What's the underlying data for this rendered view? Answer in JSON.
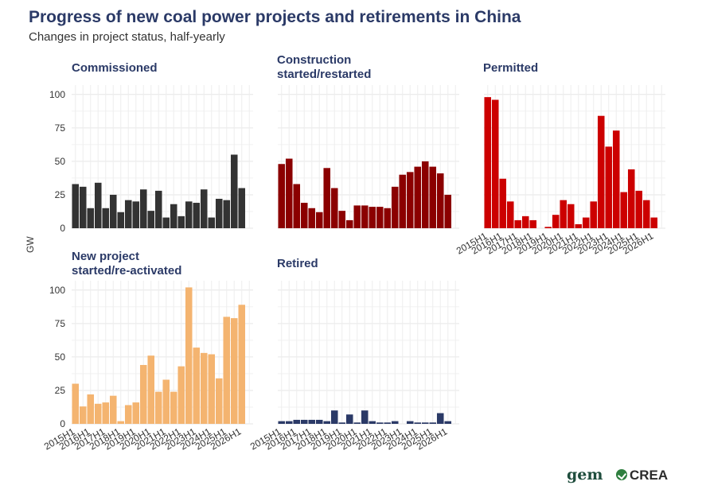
{
  "title": "Progress of new coal power projects and retirements in China",
  "subtitle": "Changes in project status, half-yearly",
  "ylabel": "GW",
  "logos": {
    "gem": "gem",
    "crea": "CREA"
  },
  "chart_data": [
    {
      "type": "bar",
      "facet": "Commissioned",
      "title_lines": [
        "Commissioned"
      ],
      "color": "#333333",
      "categories": [
        "2015H1",
        "2015H2",
        "2016H1",
        "2016H2",
        "2017H1",
        "2017H2",
        "2018H1",
        "2018H2",
        "2019H1",
        "2019H2",
        "2020H1",
        "2020H2",
        "2021H1",
        "2021H2",
        "2022H1",
        "2022H2",
        "2023H1",
        "2023H2",
        "2024H1",
        "2024H2",
        "2025H1",
        "2025H2",
        "2026H1",
        "2026H2"
      ],
      "values": [
        33,
        31,
        15,
        34,
        15,
        25,
        12,
        21,
        20,
        29,
        13,
        28,
        8,
        18,
        9,
        20,
        19,
        29,
        8,
        22,
        21,
        55,
        30,
        null
      ],
      "ylim": [
        0,
        107
      ],
      "yticks": [
        0,
        25,
        50,
        75,
        100
      ],
      "show_y": true,
      "show_x": false
    },
    {
      "type": "bar",
      "facet": "Construction started/restarted",
      "title_lines": [
        "Construction",
        "started/restarted"
      ],
      "color": "#8b0000",
      "categories": [
        "2015H1",
        "2015H2",
        "2016H1",
        "2016H2",
        "2017H1",
        "2017H2",
        "2018H1",
        "2018H2",
        "2019H1",
        "2019H2",
        "2020H1",
        "2020H2",
        "2021H1",
        "2021H2",
        "2022H1",
        "2022H2",
        "2023H1",
        "2023H2",
        "2024H1",
        "2024H2",
        "2025H1",
        "2025H2",
        "2026H1",
        "2026H2"
      ],
      "values": [
        48,
        52,
        33,
        19,
        15,
        12,
        45,
        30,
        13,
        6,
        17,
        17,
        16,
        16,
        15,
        31,
        40,
        42,
        46,
        50,
        46,
        41,
        25,
        null
      ],
      "ylim": [
        0,
        107
      ],
      "yticks": [
        0,
        25,
        50,
        75,
        100
      ],
      "show_y": false,
      "show_x": false
    },
    {
      "type": "bar",
      "facet": "Permitted",
      "title_lines": [
        "Permitted"
      ],
      "color": "#cc0000",
      "categories": [
        "2015H1",
        "2015H2",
        "2016H1",
        "2016H2",
        "2017H1",
        "2017H2",
        "2018H1",
        "2018H2",
        "2019H1",
        "2019H2",
        "2020H1",
        "2020H2",
        "2021H1",
        "2021H2",
        "2022H1",
        "2022H2",
        "2023H1",
        "2023H2",
        "2024H1",
        "2024H2",
        "2025H1",
        "2025H2",
        "2026H1",
        "2026H2"
      ],
      "values": [
        98,
        96,
        37,
        20,
        6,
        9,
        6,
        null,
        1,
        10,
        21,
        18,
        3,
        8,
        20,
        84,
        61,
        73,
        27,
        44,
        28,
        21,
        8,
        null
      ],
      "ylim": [
        0,
        107
      ],
      "yticks": [
        0,
        25,
        50,
        75,
        100
      ],
      "show_y": false,
      "show_x": true,
      "xtick_labels": [
        "2015H1",
        "2016H1",
        "2017H1",
        "2018H1",
        "2019H1",
        "2020H1",
        "2021H1",
        "2022H1",
        "2023H1",
        "2024H1",
        "2025H1",
        "2026H1"
      ]
    },
    {
      "type": "bar",
      "facet": "New project started/re-activated",
      "title_lines": [
        "New project",
        "started/re-activated"
      ],
      "color": "#f4b470",
      "categories": [
        "2015H1",
        "2015H2",
        "2016H1",
        "2016H2",
        "2017H1",
        "2017H2",
        "2018H1",
        "2018H2",
        "2019H1",
        "2019H2",
        "2020H1",
        "2020H2",
        "2021H1",
        "2021H2",
        "2022H1",
        "2022H2",
        "2023H1",
        "2023H2",
        "2024H1",
        "2024H2",
        "2025H1",
        "2025H2",
        "2026H1",
        "2026H2"
      ],
      "values": [
        30,
        13,
        22,
        15,
        16,
        21,
        2,
        14,
        16,
        44,
        51,
        24,
        33,
        24,
        43,
        102,
        57,
        53,
        52,
        34,
        80,
        79,
        89,
        null
      ],
      "ylim": [
        0,
        107
      ],
      "yticks": [
        0,
        25,
        50,
        75,
        100
      ],
      "show_y": true,
      "show_x": true,
      "xtick_labels": [
        "2015H1",
        "2016H1",
        "2017H1",
        "2018H1",
        "2019H1",
        "2020H1",
        "2021H1",
        "2022H1",
        "2023H1",
        "2024H1",
        "2025H1",
        "2026H1"
      ]
    },
    {
      "type": "bar",
      "facet": "Retired",
      "title_lines": [
        "Retired"
      ],
      "color": "#2b3a67",
      "categories": [
        "2015H1",
        "2015H2",
        "2016H1",
        "2016H2",
        "2017H1",
        "2017H2",
        "2018H1",
        "2018H2",
        "2019H1",
        "2019H2",
        "2020H1",
        "2020H2",
        "2021H1",
        "2021H2",
        "2022H1",
        "2022H2",
        "2023H1",
        "2023H2",
        "2024H1",
        "2024H2",
        "2025H1",
        "2025H2",
        "2026H1",
        "2026H2"
      ],
      "values": [
        2,
        2,
        3,
        3,
        3,
        3,
        2,
        10,
        1,
        7,
        1,
        10,
        2,
        1,
        1,
        2,
        null,
        2,
        1,
        1,
        1,
        8,
        2,
        null
      ],
      "ylim": [
        0,
        107
      ],
      "yticks": [
        0,
        25,
        50,
        75,
        100
      ],
      "show_y": false,
      "show_x": true,
      "xtick_labels": [
        "2015H1",
        "2016H1",
        "2017H1",
        "2018H1",
        "2019H1",
        "2020H1",
        "2021H1",
        "2022H1",
        "2023H1",
        "2024H1",
        "2025H1",
        "2026H1"
      ]
    }
  ]
}
